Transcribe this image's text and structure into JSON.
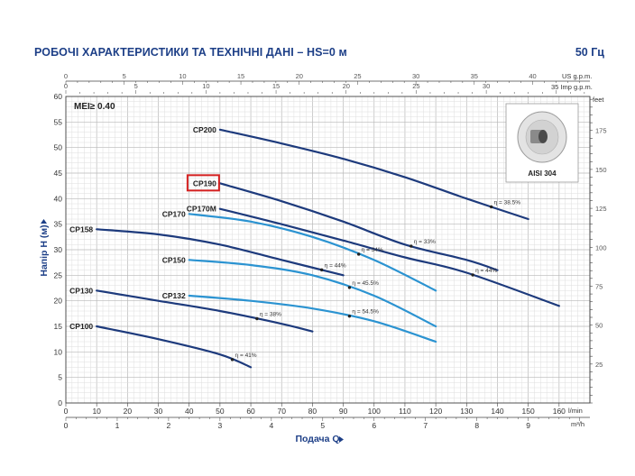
{
  "header": {
    "title": "РОБОЧІ ХАРАКТЕРИСТИКИ ТА ТЕХНІЧНІ ДАНІ  –  HS=0 м",
    "frequency": "50 Гц"
  },
  "mei_label": "MEI≥ 0.40",
  "inset_label": "AISI 304",
  "chart_data": {
    "type": "line",
    "xlabel": "Подача Q",
    "ylabel": "Напір H (м)",
    "x_unit_main": "l/min",
    "x_unit_bottom": "m³/h",
    "x_unit_top_us": "US g.p.m.",
    "x_unit_top_imp": "35 Imp g.p.m.",
    "y_unit_right": "feet",
    "xlim": [
      0,
      170
    ],
    "ylim": [
      0,
      60
    ],
    "grid": true,
    "x_ticks": [
      0,
      10,
      20,
      30,
      40,
      50,
      60,
      70,
      80,
      90,
      100,
      110,
      120,
      130,
      140,
      150,
      160
    ],
    "y_ticks": [
      0,
      5,
      10,
      15,
      20,
      25,
      30,
      35,
      40,
      45,
      50,
      55,
      60
    ],
    "feet_ticks": [
      25,
      50,
      75,
      100,
      125,
      150,
      175
    ],
    "m3h_ticks": [
      0,
      1,
      2,
      3,
      4,
      5,
      6,
      7,
      8,
      9
    ],
    "usgpm_ticks": [
      0,
      5,
      10,
      15,
      20,
      25,
      30,
      35,
      40
    ],
    "impgpm_ticks": [
      0,
      5,
      10,
      15,
      20,
      25,
      30
    ],
    "series": [
      {
        "name": "CP200",
        "color": "#1d3a7c",
        "x": [
          50,
          70,
          90,
          110,
          130,
          150
        ],
        "y": [
          53.5,
          50.8,
          47.8,
          44.2,
          40.0,
          36.0
        ],
        "eta": "η = 38.5%",
        "eta_x": 138
      },
      {
        "name": "CP190",
        "color": "#1d3a7c",
        "x": [
          50,
          70,
          90,
          110,
          130,
          140
        ],
        "y": [
          43.0,
          39.5,
          35.5,
          31.0,
          28.0,
          26.0
        ],
        "eta": "η = 33%",
        "eta_x": 112
      },
      {
        "name": "CP170",
        "color": "#2b93d1",
        "x": [
          40,
          60,
          80,
          100,
          120
        ],
        "y": [
          37.0,
          35.5,
          32.5,
          28.0,
          22.0
        ],
        "eta": "η = 34%",
        "eta_x": 95
      },
      {
        "name": "CP170M",
        "color": "#1d3a7c",
        "x": [
          50,
          70,
          90,
          110,
          130,
          160
        ],
        "y": [
          38.0,
          35.0,
          31.8,
          28.5,
          25.5,
          19.0
        ],
        "eta": "η = 44%",
        "eta_x": 132
      },
      {
        "name": "CP158",
        "color": "#1d3a7c",
        "x": [
          10,
          30,
          50,
          70,
          90
        ],
        "y": [
          34.0,
          33.0,
          31.0,
          28.0,
          25.0
        ],
        "eta": "η = 44%",
        "eta_x": 83
      },
      {
        "name": "CP150",
        "color": "#2b93d1",
        "x": [
          40,
          60,
          80,
          100,
          120
        ],
        "y": [
          28.0,
          27.0,
          25.0,
          21.0,
          15.0
        ],
        "eta": "η = 45.5%",
        "eta_x": 92
      },
      {
        "name": "CP132",
        "color": "#2b93d1",
        "x": [
          40,
          60,
          80,
          100,
          120
        ],
        "y": [
          21.0,
          20.0,
          18.5,
          16.0,
          12.0
        ],
        "eta": "η = 54.5%",
        "eta_x": 92
      },
      {
        "name": "CP130",
        "color": "#1d3a7c",
        "x": [
          10,
          30,
          50,
          70,
          80
        ],
        "y": [
          22.0,
          20.0,
          18.0,
          15.5,
          14.0
        ],
        "eta": "η = 38%",
        "eta_x": 62
      },
      {
        "name": "CP100",
        "color": "#1d3a7c",
        "x": [
          10,
          30,
          50,
          60
        ],
        "y": [
          15.0,
          12.5,
          9.5,
          7.0
        ],
        "eta": "η = 41%",
        "eta_x": 54
      }
    ],
    "highlighted_series": "CP190"
  }
}
